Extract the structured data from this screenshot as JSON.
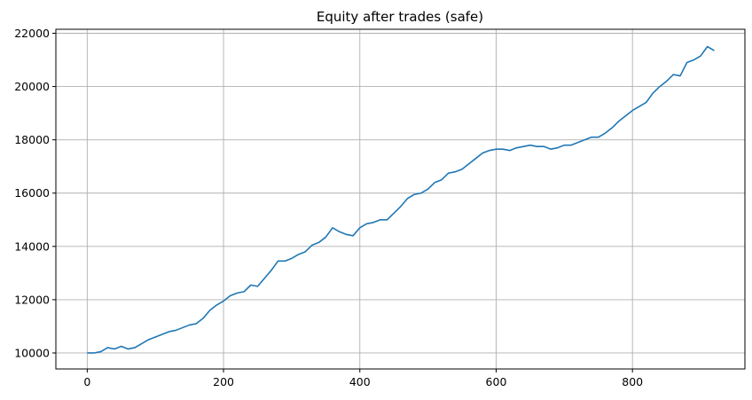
{
  "chart_data": {
    "type": "line",
    "title": "Equity after trades (safe)",
    "xlabel": "",
    "ylabel": "",
    "xlim": [
      -46,
      965
    ],
    "ylim": [
      9400,
      22150
    ],
    "xticks": [
      0,
      200,
      400,
      600,
      800
    ],
    "yticks": [
      10000,
      12000,
      14000,
      16000,
      18000,
      20000,
      22000
    ],
    "grid": true,
    "series": [
      {
        "color": "#1f77b4",
        "x": [
          0,
          10,
          20,
          30,
          40,
          50,
          60,
          70,
          80,
          90,
          100,
          110,
          120,
          130,
          140,
          150,
          160,
          170,
          180,
          190,
          200,
          210,
          220,
          230,
          240,
          250,
          260,
          270,
          280,
          290,
          300,
          310,
          320,
          330,
          340,
          350,
          360,
          370,
          380,
          390,
          400,
          410,
          420,
          430,
          440,
          450,
          460,
          470,
          480,
          490,
          500,
          510,
          520,
          530,
          540,
          550,
          560,
          570,
          580,
          590,
          600,
          610,
          620,
          630,
          640,
          650,
          660,
          670,
          680,
          690,
          700,
          710,
          720,
          730,
          740,
          750,
          760,
          770,
          780,
          790,
          800,
          810,
          820,
          830,
          840,
          850,
          860,
          870,
          880,
          890,
          900,
          910,
          920
        ],
        "y": [
          10000,
          10000,
          10050,
          10200,
          10150,
          10250,
          10150,
          10200,
          10350,
          10500,
          10600,
          10700,
          10800,
          10850,
          10950,
          11050,
          11100,
          11300,
          11600,
          11800,
          11950,
          12150,
          12250,
          12300,
          12550,
          12500,
          12800,
          13100,
          13450,
          13450,
          13550,
          13700,
          13800,
          14050,
          14150,
          14350,
          14700,
          14550,
          14450,
          14400,
          14700,
          14850,
          14900,
          15000,
          15000,
          15250,
          15500,
          15800,
          15950,
          16000,
          16150,
          16400,
          16500,
          16750,
          16800,
          16900,
          17100,
          17300,
          17500,
          17600,
          17650,
          17650,
          17600,
          17700,
          17750,
          17800,
          17750,
          17750,
          17650,
          17700,
          17800,
          17800,
          17900,
          18000,
          18100,
          18100,
          18250,
          18450,
          18700,
          18900,
          19100,
          19250,
          19400,
          19750,
          20000,
          20200,
          20450,
          20400,
          20900,
          21000,
          21150,
          21500,
          21350
        ]
      }
    ]
  }
}
